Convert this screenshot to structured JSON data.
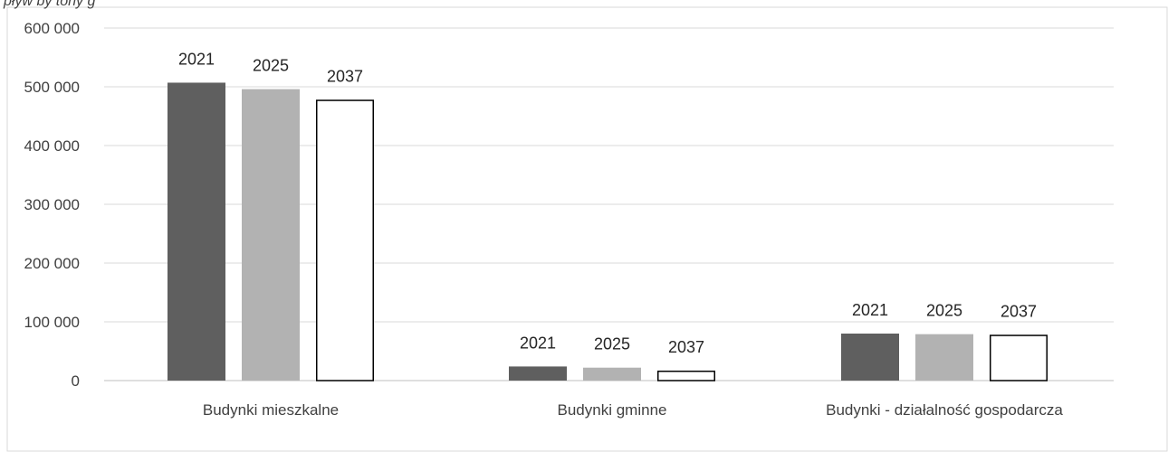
{
  "chart_data": {
    "type": "bar",
    "title_fragment": "pływ by tony g",
    "categories": [
      "Budynki mieszkalne",
      "Budynki gminne",
      "Budynki - działalność gospodarcza"
    ],
    "series": [
      {
        "name": "2021",
        "values": [
          507000,
          24000,
          80000
        ],
        "color": "#5f5f5f",
        "border": "#5f5f5f"
      },
      {
        "name": "2025",
        "values": [
          496000,
          22000,
          79000
        ],
        "color": "#b2b2b2",
        "border": "#b2b2b2"
      },
      {
        "name": "2037",
        "values": [
          478000,
          17000,
          78000
        ],
        "color": "#ffffff",
        "border": "#000000"
      }
    ],
    "yticks": [
      0,
      100000,
      200000,
      300000,
      400000,
      500000,
      600000
    ],
    "ytick_labels": [
      "0",
      "100 000",
      "200 000",
      "300 000",
      "400 000",
      "500 000",
      "600 000"
    ],
    "ylim": [
      0,
      600000
    ],
    "xlabel": "",
    "ylabel": "",
    "grid": true,
    "legend": "none",
    "gridline_color": "#d9d9d9"
  }
}
